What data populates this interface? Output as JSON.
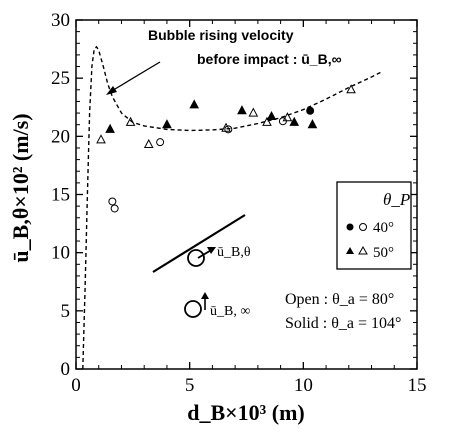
{
  "chart_data": {
    "type": "scatter",
    "xlabel": "d_B×10³ (m)",
    "ylabel": "ū_B,θ×10² (m/s)",
    "xlim": [
      0,
      15
    ],
    "ylim": [
      0,
      30
    ],
    "xticks": [
      "0",
      "5",
      "10",
      "15"
    ],
    "yticks": [
      "0",
      "5",
      "10",
      "15",
      "20",
      "25",
      "30"
    ],
    "legend": {
      "title": "θ_P",
      "placement": "right",
      "entries": [
        {
          "label": "40°",
          "filled": "circle-filled",
          "open": "circle-open"
        },
        {
          "label": "50°",
          "filled": "triangle-filled",
          "open": "triangle-open"
        }
      ]
    },
    "curve": {
      "label": "Bubble rising velocity",
      "label2": "before impact : ū_B,∞",
      "style": "dashed",
      "points": [
        [
          0.3,
          0
        ],
        [
          0.4,
          7
        ],
        [
          0.5,
          15
        ],
        [
          0.6,
          22
        ],
        [
          0.7,
          26
        ],
        [
          0.8,
          27.5
        ],
        [
          0.9,
          27.7
        ],
        [
          1.0,
          27.4
        ],
        [
          1.2,
          26
        ],
        [
          1.4,
          24.5
        ],
        [
          1.6,
          23.4
        ],
        [
          2.0,
          22
        ],
        [
          2.5,
          21.2
        ],
        [
          3.0,
          20.9
        ],
        [
          4.0,
          20.6
        ],
        [
          5.0,
          20.5
        ],
        [
          6.0,
          20.55
        ],
        [
          7.0,
          20.7
        ],
        [
          8.0,
          21.1
        ],
        [
          9.0,
          21.6
        ],
        [
          10.0,
          22.3
        ],
        [
          11.0,
          23.2
        ],
        [
          12.0,
          24.2
        ],
        [
          13.0,
          25.1
        ],
        [
          13.5,
          25.6
        ]
      ]
    },
    "series": [
      {
        "name": "40° Solid",
        "marker": "circle-filled",
        "points": [
          [
            10.3,
            22.2
          ]
        ]
      },
      {
        "name": "40° Open",
        "marker": "circle-open",
        "points": [
          [
            1.6,
            14.4
          ],
          [
            1.7,
            13.8
          ],
          [
            3.7,
            19.5
          ],
          [
            6.7,
            20.6
          ],
          [
            9.1,
            21.3
          ]
        ]
      },
      {
        "name": "50° Solid",
        "marker": "triangle-filled",
        "points": [
          [
            1.5,
            20.6
          ],
          [
            4.0,
            21.0
          ],
          [
            5.2,
            22.7
          ],
          [
            7.3,
            22.2
          ],
          [
            8.6,
            21.7
          ],
          [
            9.6,
            21.2
          ],
          [
            10.4,
            21.0
          ]
        ]
      },
      {
        "name": "50° Open",
        "marker": "triangle-open",
        "points": [
          [
            1.1,
            19.7
          ],
          [
            2.4,
            21.2
          ],
          [
            3.2,
            19.3
          ],
          [
            6.6,
            20.7
          ],
          [
            7.8,
            22.0
          ],
          [
            8.4,
            21.2
          ],
          [
            9.3,
            21.6
          ],
          [
            12.1,
            24.0
          ]
        ]
      }
    ],
    "conditions": [
      {
        "label": "Open : θ_a = 80°"
      },
      {
        "label": "Solid : θ_a = 104°"
      }
    ],
    "inset_labels": {
      "angled": "ū_B,θ",
      "vertical": "ū_B, ∞"
    }
  }
}
